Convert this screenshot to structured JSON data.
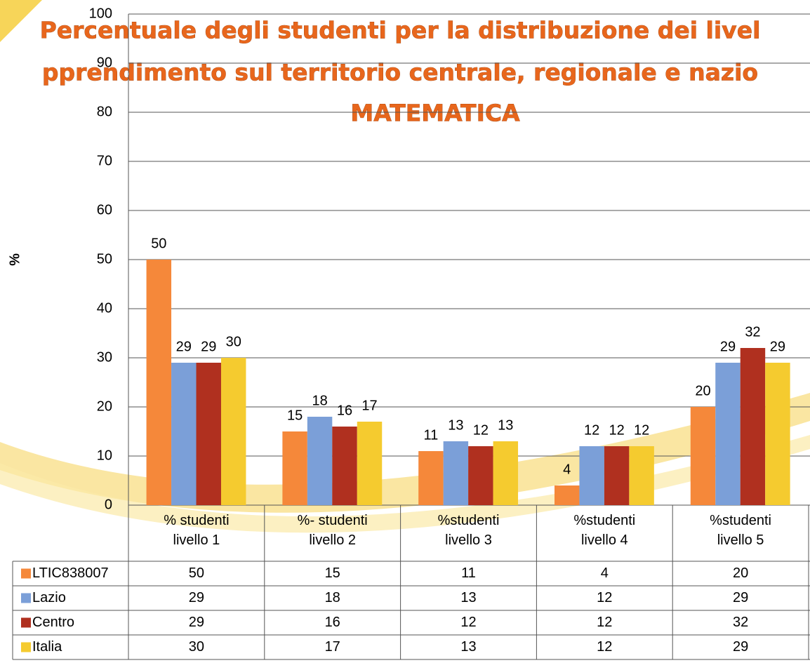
{
  "chart_data": {
    "type": "bar",
    "title_lines": [
      "Percentuale degli studenti per la distribuzione dei livel",
      "pprendimento sul territorio centrale, regionale e nazio",
      "MATEMATICA"
    ],
    "y_label": "%",
    "categories": [
      "% studenti\nlivello 1",
      "%- studenti\nlivello 2",
      "%studenti\nlivello 3",
      "%studenti\nlivello 4",
      "%studenti\nlivello 5"
    ],
    "series": [
      {
        "name": "LTIC838007",
        "color": "#f5883a",
        "values": [
          50,
          15,
          11,
          4,
          20
        ]
      },
      {
        "name": "Lazio",
        "color": "#7b9fd8",
        "values": [
          29,
          18,
          13,
          12,
          29
        ]
      },
      {
        "name": "Centro",
        "color": "#b0301f",
        "values": [
          29,
          16,
          12,
          12,
          32
        ]
      },
      {
        "name": "Italia",
        "color": "#f5cb2f",
        "values": [
          30,
          17,
          13,
          12,
          29
        ]
      }
    ],
    "ylim": [
      0,
      100
    ],
    "yticks": [
      0,
      10,
      20,
      30,
      40,
      50,
      60,
      70,
      80,
      90,
      100
    ],
    "grid": true,
    "data_table": true
  }
}
